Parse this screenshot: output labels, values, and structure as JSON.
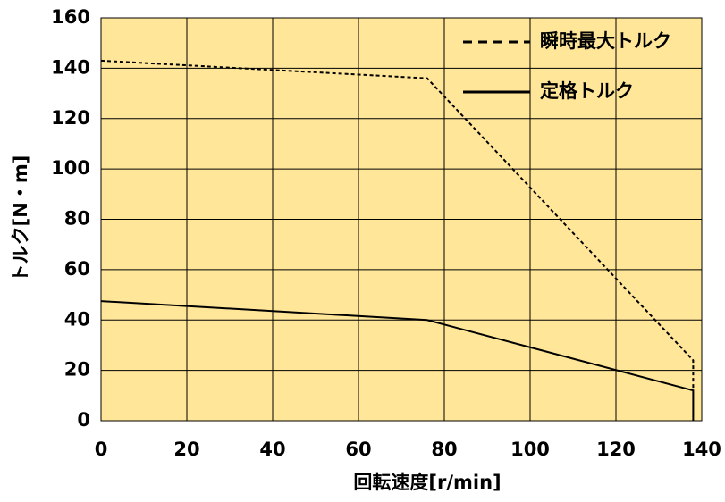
{
  "chart_data": {
    "type": "line",
    "xlabel": "回転速度[r/min]",
    "ylabel": "トルク[N・m]",
    "xlim": [
      0,
      140
    ],
    "xticks": [
      0,
      20,
      40,
      60,
      80,
      100,
      120,
      140
    ],
    "ylim": [
      0,
      160
    ],
    "yticks": [
      0,
      20,
      40,
      60,
      80,
      100,
      120,
      140,
      160
    ],
    "grid": true,
    "background": "#ffe699",
    "legend": "upper right",
    "series": [
      {
        "name": "瞬時最大トルク",
        "color": "#000000",
        "linestyle": "dashed",
        "x": [
          0,
          76,
          138,
          138
        ],
        "values": [
          143,
          136,
          24,
          12
        ]
      },
      {
        "name": "定格トルク",
        "color": "#000000",
        "linestyle": "solid",
        "x": [
          0,
          76,
          138,
          138
        ],
        "values": [
          47.5,
          40,
          12,
          0
        ]
      }
    ]
  }
}
